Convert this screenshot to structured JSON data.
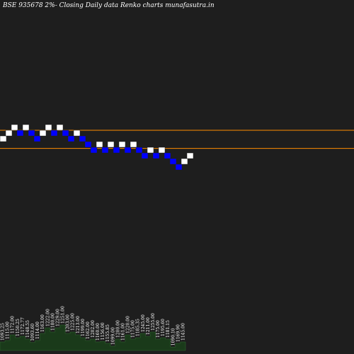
{
  "header": {
    "title": "BSE 935678  2%-  Closing Daily data  Renko  charts munafasutra.in"
  },
  "colors": {
    "background": "#1e1e1e",
    "up_brick": "#ffffff",
    "down_brick": "#0000ff",
    "brick_border": "#1e1e1e",
    "level_line": "#ff8c00",
    "volume_fill": "#1a3a1a",
    "volume_stroke": "#2e6b2e"
  },
  "chart_data": {
    "type": "renko",
    "title": "BSE 935678  2%-  Closing Daily data  Renko  charts munafasutra.in",
    "brick_size_percent": 2,
    "bricks": [
      {
        "dir": "up",
        "level": 0
      },
      {
        "dir": "up",
        "level": 1
      },
      {
        "dir": "up",
        "level": 2
      },
      {
        "dir": "down",
        "level": 1
      },
      {
        "dir": "up",
        "level": 2
      },
      {
        "dir": "down",
        "level": 1
      },
      {
        "dir": "down",
        "level": 0
      },
      {
        "dir": "up",
        "level": 1
      },
      {
        "dir": "up",
        "level": 2
      },
      {
        "dir": "down",
        "level": 1
      },
      {
        "dir": "up",
        "level": 2
      },
      {
        "dir": "down",
        "level": 1
      },
      {
        "dir": "down",
        "level": 0
      },
      {
        "dir": "up",
        "level": 1
      },
      {
        "dir": "down",
        "level": 0
      },
      {
        "dir": "down",
        "level": -1
      },
      {
        "dir": "down",
        "level": -2
      },
      {
        "dir": "up",
        "level": -1
      },
      {
        "dir": "down",
        "level": -2
      },
      {
        "dir": "up",
        "level": -1
      },
      {
        "dir": "down",
        "level": -2
      },
      {
        "dir": "up",
        "level": -1
      },
      {
        "dir": "down",
        "level": -2
      },
      {
        "dir": "up",
        "level": -1
      },
      {
        "dir": "down",
        "level": -2
      },
      {
        "dir": "down",
        "level": -3
      },
      {
        "dir": "up",
        "level": -2
      },
      {
        "dir": "down",
        "level": -3
      },
      {
        "dir": "up",
        "level": -2
      },
      {
        "dir": "down",
        "level": -3
      },
      {
        "dir": "down",
        "level": -4
      },
      {
        "dir": "down",
        "level": -5
      },
      {
        "dir": "up",
        "level": -4
      },
      {
        "dir": "up",
        "level": -3
      }
    ],
    "level_lines": [
      2,
      -1.2
    ],
    "volume_labels": [
      "1093.25",
      "1115.00",
      "1172.00",
      "1150.25",
      "1172.77",
      "1148.55",
      "1093.60",
      "1114.00",
      "1163.00",
      "1222.00",
      "1180.00",
      "1229.00",
      "1251.00",
      "1203.00",
      "1225.00",
      "1213.00",
      "1199.00",
      "1162.00",
      "1202.00",
      "1160.00",
      "1156.00",
      "1155.85",
      "1099.00",
      "1200.00",
      "1161.00",
      "1220.00",
      "1175.00",
      "1185.35",
      "1245.00",
      "1211.00",
      "1255.00",
      "1175.00",
      "1195.60",
      "1181.15",
      "1090.10",
      "1169.90",
      "1145.00"
    ],
    "volume_values": [
      0.3,
      0.35,
      0.55,
      0.45,
      0.5,
      0.4,
      0.28,
      0.35,
      0.6,
      0.8,
      0.65,
      0.8,
      0.9,
      0.6,
      0.65,
      0.55,
      0.45,
      0.35,
      0.4,
      0.3,
      0.32,
      0.25,
      0.15,
      0.4,
      0.3,
      0.55,
      0.4,
      0.45,
      0.6,
      0.5,
      0.65,
      0.4,
      0.45,
      0.4,
      0.12,
      0.25,
      0.3
    ]
  }
}
